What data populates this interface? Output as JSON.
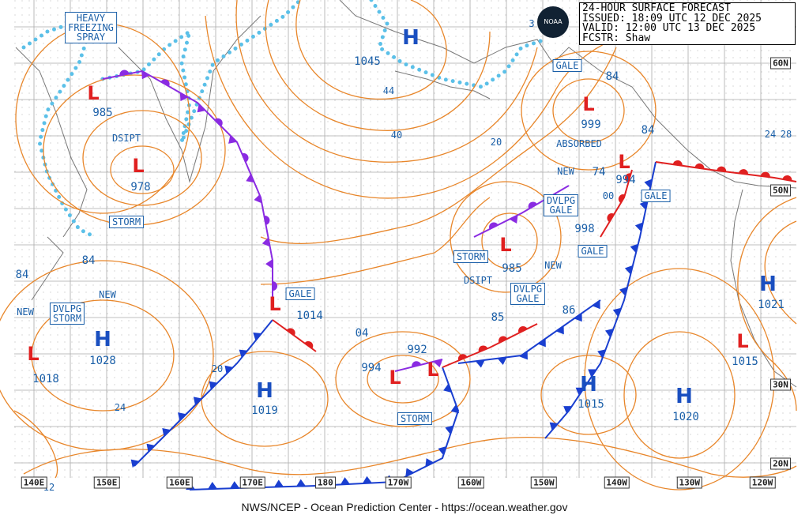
{
  "header": {
    "title": "24-HOUR SURFACE FORECAST",
    "issued": "ISSUED: 18:09 UTC 12 DEC 2025",
    "valid": "VALID:  12:00 UTC 13 DEC 2025",
    "forecaster": "FCSTR:  Shaw"
  },
  "logo": "NOAA",
  "pressure_systems": [
    {
      "symbol": "H",
      "pressure": "1045"
    },
    {
      "symbol": "L",
      "pressure": "985"
    },
    {
      "symbol": "L",
      "pressure": "978"
    },
    {
      "symbol": "L",
      "pressure": "999"
    },
    {
      "symbol": "L",
      "pressure": "994"
    },
    {
      "symbol": "L",
      "pressure": "985"
    },
    {
      "symbol": "L",
      "pressure": "1014"
    },
    {
      "symbol": "L",
      "pressure": "994"
    },
    {
      "symbol": "L",
      "pressure": "992"
    },
    {
      "symbol": "H",
      "pressure": "1028"
    },
    {
      "symbol": "H",
      "pressure": "1019"
    },
    {
      "symbol": "H",
      "pressure": "1015"
    },
    {
      "symbol": "H",
      "pressure": "1020"
    },
    {
      "symbol": "H",
      "pressure": "1021"
    },
    {
      "symbol": "L",
      "pressure": "1015"
    },
    {
      "symbol": "L",
      "pressure": "1018"
    }
  ],
  "pressure_values": [
    "998",
    "84",
    "84",
    "74",
    "84",
    "84",
    "85",
    "86",
    "04"
  ],
  "boxed_labels": [
    {
      "lines": [
        "HEAVY",
        "FREEZING",
        "SPRAY"
      ]
    },
    {
      "lines": [
        "STORM"
      ]
    },
    {
      "lines": [
        "DVLPG",
        "STORM"
      ]
    },
    {
      "lines": [
        "GALE"
      ]
    },
    {
      "lines": [
        "GALE"
      ]
    },
    {
      "lines": [
        "GALE"
      ]
    },
    {
      "lines": [
        "DVLPG",
        "GALE"
      ]
    },
    {
      "lines": [
        "GALE"
      ]
    },
    {
      "lines": [
        "STORM"
      ]
    },
    {
      "lines": [
        "DVLPG",
        "GALE"
      ]
    },
    {
      "lines": [
        "STORM"
      ]
    }
  ],
  "notes": [
    "DSIPT",
    "NEW",
    "NEW",
    "ABSORBED",
    "NEW",
    "NEW",
    "DSIPT"
  ],
  "isobar_labels": [
    "44",
    "40",
    "20",
    "24",
    "28",
    "00",
    "20",
    "24",
    "12",
    "3"
  ],
  "longitude_labels": [
    "140E",
    "150E",
    "160E",
    "170E",
    "180",
    "170W",
    "160W",
    "150W",
    "140W",
    "130W",
    "120W"
  ],
  "latitude_labels": [
    "60N",
    "50N",
    "30N",
    "20N"
  ],
  "footer": "NWS/NCEP - Ocean Prediction Center - https://ocean.weather.gov"
}
